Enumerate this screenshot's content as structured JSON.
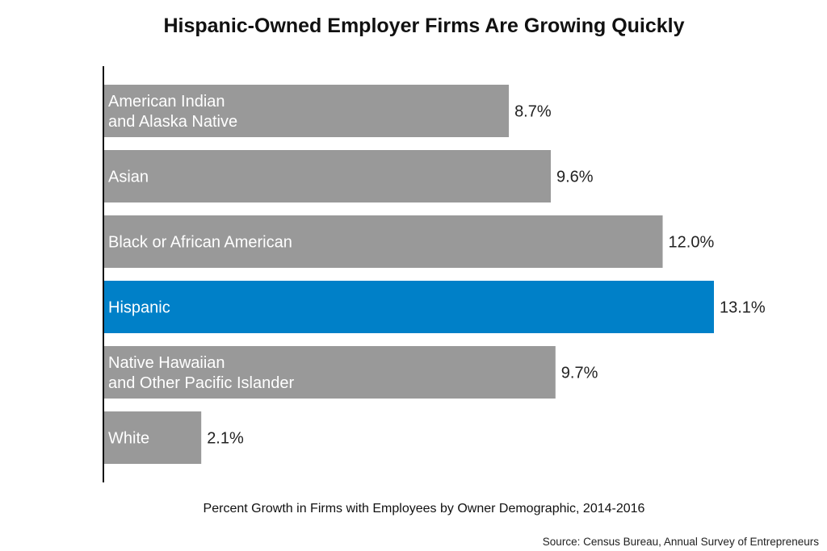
{
  "chart_data": {
    "type": "bar",
    "orientation": "horizontal",
    "title": "Hispanic-Owned Employer Firms Are Growing Quickly",
    "xlabel": "Percent Growth in Firms with Employees by Owner Demographic, 2014-2016",
    "ylabel": "",
    "source": "Source: Census Bureau, Annual Survey of Entrepreneurs",
    "categories": [
      [
        "American Indian",
        "and Alaska Native"
      ],
      [
        "Asian"
      ],
      [
        "Black or African American"
      ],
      [
        "Hispanic"
      ],
      [
        "Native Hawaiian",
        "and Other Pacific Islander"
      ],
      [
        "White"
      ]
    ],
    "values": [
      8.7,
      9.6,
      12.0,
      13.1,
      9.7,
      2.1
    ],
    "value_labels": [
      "8.7%",
      "9.6%",
      "12.0%",
      "13.1%",
      "9.7%",
      "2.1%"
    ],
    "highlight_index": 3,
    "xlim": [
      0,
      13.1
    ],
    "grid": false,
    "colors": {
      "default": "#999999",
      "highlight": "#0080c8",
      "axis": "#111111"
    }
  }
}
